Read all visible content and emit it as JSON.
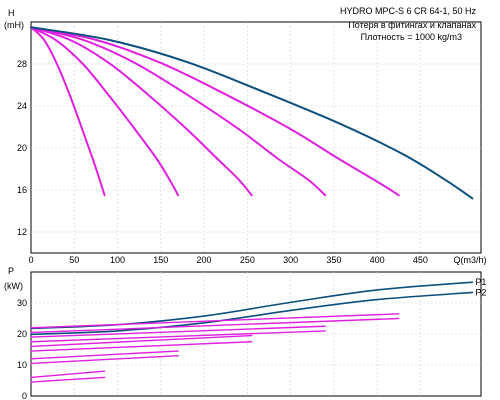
{
  "chart_data": [
    {
      "id": "head",
      "type": "line",
      "title": "HYDRO MPC-S 6 CR 64-1, 50 Hz",
      "subtitle_lines": [
        "Потеря в фитингах и клапанах",
        "Плотность = 1000 kg/m3"
      ],
      "ylabel_lines": [
        "H",
        "(mH)"
      ],
      "xlabel": "Q(m3/h)",
      "xlim": [
        0,
        520
      ],
      "ylim": [
        10,
        32
      ],
      "x_ticks": [
        0,
        50,
        100,
        150,
        200,
        250,
        300,
        350,
        400,
        450
      ],
      "y_ticks": [
        12,
        16,
        20,
        24,
        28
      ],
      "grid": true,
      "series": [
        {
          "color": "#e020e0",
          "x": [
            0,
            15,
            30,
            45,
            60,
            72,
            80,
            85
          ],
          "y": [
            31.5,
            30.3,
            28.0,
            25.0,
            21.6,
            18.8,
            16.8,
            15.5
          ]
        },
        {
          "color": "#e020e0",
          "x": [
            0,
            30,
            60,
            90,
            120,
            145,
            160,
            170
          ],
          "y": [
            31.5,
            30.2,
            28.0,
            25.0,
            21.8,
            19.0,
            17.0,
            15.5
          ]
        },
        {
          "color": "#e020e0",
          "x": [
            0,
            45,
            90,
            135,
            180,
            215,
            240,
            255
          ],
          "y": [
            31.5,
            30.3,
            28.1,
            25.1,
            21.8,
            19.0,
            17.0,
            15.5
          ]
        },
        {
          "color": "#e020e0",
          "x": [
            0,
            60,
            120,
            180,
            240,
            285,
            320,
            340
          ],
          "y": [
            31.5,
            30.3,
            28.1,
            25.1,
            21.8,
            19.0,
            17.0,
            15.5
          ]
        },
        {
          "color": "#e020e0",
          "x": [
            0,
            75,
            150,
            225,
            300,
            355,
            400,
            425
          ],
          "y": [
            31.5,
            30.3,
            28.1,
            25.1,
            21.8,
            19.0,
            16.8,
            15.5
          ]
        },
        {
          "color": "#0b4f7c",
          "x": [
            0,
            90,
            180,
            270,
            360,
            430,
            480,
            510
          ],
          "y": [
            31.5,
            30.3,
            28.2,
            25.3,
            22.2,
            19.4,
            16.9,
            15.2
          ]
        }
      ]
    },
    {
      "id": "power",
      "type": "line",
      "ylabel_lines": [
        "P",
        "(kW)"
      ],
      "xlim": [
        0,
        520
      ],
      "ylim": [
        0,
        40
      ],
      "y_ticks": [
        0,
        10,
        20,
        30
      ],
      "grid": true,
      "series": [
        {
          "name": "P1",
          "color": "#0b4f7c",
          "x": [
            0,
            100,
            200,
            300,
            400,
            510
          ],
          "y": [
            21.8,
            23.0,
            25.8,
            30.2,
            34.2,
            36.7
          ]
        },
        {
          "name": "P2",
          "color": "#0b4f7c",
          "x": [
            0,
            100,
            200,
            300,
            400,
            510
          ],
          "y": [
            19.9,
            21.0,
            23.6,
            27.6,
            31.1,
            33.4
          ]
        },
        {
          "color": "#e020e0",
          "x": [
            0,
            425
          ],
          "y": [
            22.0,
            26.5
          ]
        },
        {
          "color": "#e020e0",
          "x": [
            0,
            425
          ],
          "y": [
            20.5,
            25.0
          ]
        },
        {
          "color": "#e020e0",
          "x": [
            0,
            340
          ],
          "y": [
            19.0,
            22.5
          ]
        },
        {
          "color": "#e020e0",
          "x": [
            0,
            340
          ],
          "y": [
            17.5,
            21.0
          ]
        },
        {
          "color": "#e020e0",
          "x": [
            0,
            255
          ],
          "y": [
            16.0,
            19.5
          ]
        },
        {
          "color": "#e020e0",
          "x": [
            0,
            255
          ],
          "y": [
            14.5,
            17.5
          ]
        },
        {
          "color": "#e020e0",
          "x": [
            0,
            170
          ],
          "y": [
            12.0,
            14.5
          ]
        },
        {
          "color": "#e020e0",
          "x": [
            0,
            170
          ],
          "y": [
            10.5,
            13.0
          ]
        },
        {
          "color": "#e020e0",
          "x": [
            0,
            85
          ],
          "y": [
            6.0,
            8.0
          ]
        },
        {
          "color": "#e020e0",
          "x": [
            0,
            85
          ],
          "y": [
            4.5,
            6.0
          ]
        }
      ]
    }
  ]
}
